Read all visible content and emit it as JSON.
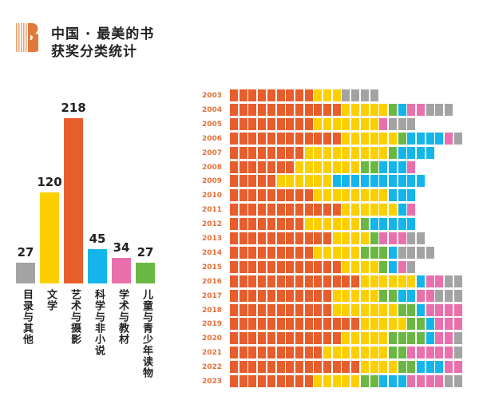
{
  "header": {
    "title_line1": "中国 · 最美的书",
    "title_line2": "获奖分类统计"
  },
  "chart_data": [
    {
      "type": "bar",
      "categories": [
        "目录与其他",
        "文学",
        "艺术与摄影",
        "科学与非小说",
        "学术与教材",
        "儿童与青少年读物"
      ],
      "values": [
        27,
        120,
        218,
        45,
        34,
        27
      ],
      "colors": [
        "#a3a3a3",
        "#fccf00",
        "#e85d2c",
        "#13b5ea",
        "#e970ac",
        "#6ab744"
      ]
    },
    {
      "type": "waffle",
      "unit": "1 square = 1 book",
      "categories": [
        "艺术与摄影",
        "文学",
        "儿童与青少年读物",
        "科学与非小说",
        "学术与教材",
        "目录与其他"
      ],
      "colors": [
        "#e85d2c",
        "#fccf00",
        "#6ab744",
        "#13b5ea",
        "#e970ac",
        "#a3a3a3"
      ],
      "rows": [
        {
          "year": "2003",
          "counts": [
            9,
            3,
            0,
            0,
            0,
            4
          ]
        },
        {
          "year": "2004",
          "counts": [
            12,
            5,
            1,
            1,
            2,
            3
          ]
        },
        {
          "year": "2005",
          "counts": [
            9,
            7,
            0,
            0,
            1,
            3
          ]
        },
        {
          "year": "2006",
          "counts": [
            12,
            6,
            1,
            4,
            1,
            1
          ]
        },
        {
          "year": "2007",
          "counts": [
            8,
            9,
            1,
            4,
            0,
            0
          ]
        },
        {
          "year": "2008",
          "counts": [
            7,
            7,
            2,
            3,
            1,
            0
          ]
        },
        {
          "year": "2009",
          "counts": [
            5,
            6,
            0,
            10,
            0,
            0
          ]
        },
        {
          "year": "2010",
          "counts": [
            9,
            8,
            0,
            3,
            0,
            0
          ]
        },
        {
          "year": "2011",
          "counts": [
            12,
            6,
            0,
            1,
            1,
            0
          ]
        },
        {
          "year": "2012",
          "counts": [
            8,
            6,
            1,
            5,
            0,
            0
          ]
        },
        {
          "year": "2013",
          "counts": [
            11,
            4,
            1,
            0,
            3,
            2
          ]
        },
        {
          "year": "2014",
          "counts": [
            9,
            5,
            3,
            1,
            0,
            4
          ]
        },
        {
          "year": "2015",
          "counts": [
            12,
            4,
            1,
            1,
            1,
            1
          ]
        },
        {
          "year": "2016",
          "counts": [
            14,
            6,
            0,
            1,
            2,
            2
          ]
        },
        {
          "year": "2017",
          "counts": [
            11,
            5,
            2,
            2,
            2,
            3
          ]
        },
        {
          "year": "2018",
          "counts": [
            11,
            7,
            2,
            1,
            4,
            0
          ]
        },
        {
          "year": "2019",
          "counts": [
            14,
            5,
            2,
            1,
            3,
            0
          ]
        },
        {
          "year": "2020",
          "counts": [
            12,
            5,
            4,
            1,
            2,
            1
          ]
        },
        {
          "year": "2021",
          "counts": [
            10,
            7,
            2,
            0,
            5,
            1
          ]
        },
        {
          "year": "2022",
          "counts": [
            14,
            4,
            2,
            3,
            2,
            0
          ]
        },
        {
          "year": "2023",
          "counts": [
            9,
            5,
            2,
            3,
            4,
            2
          ]
        }
      ]
    }
  ]
}
